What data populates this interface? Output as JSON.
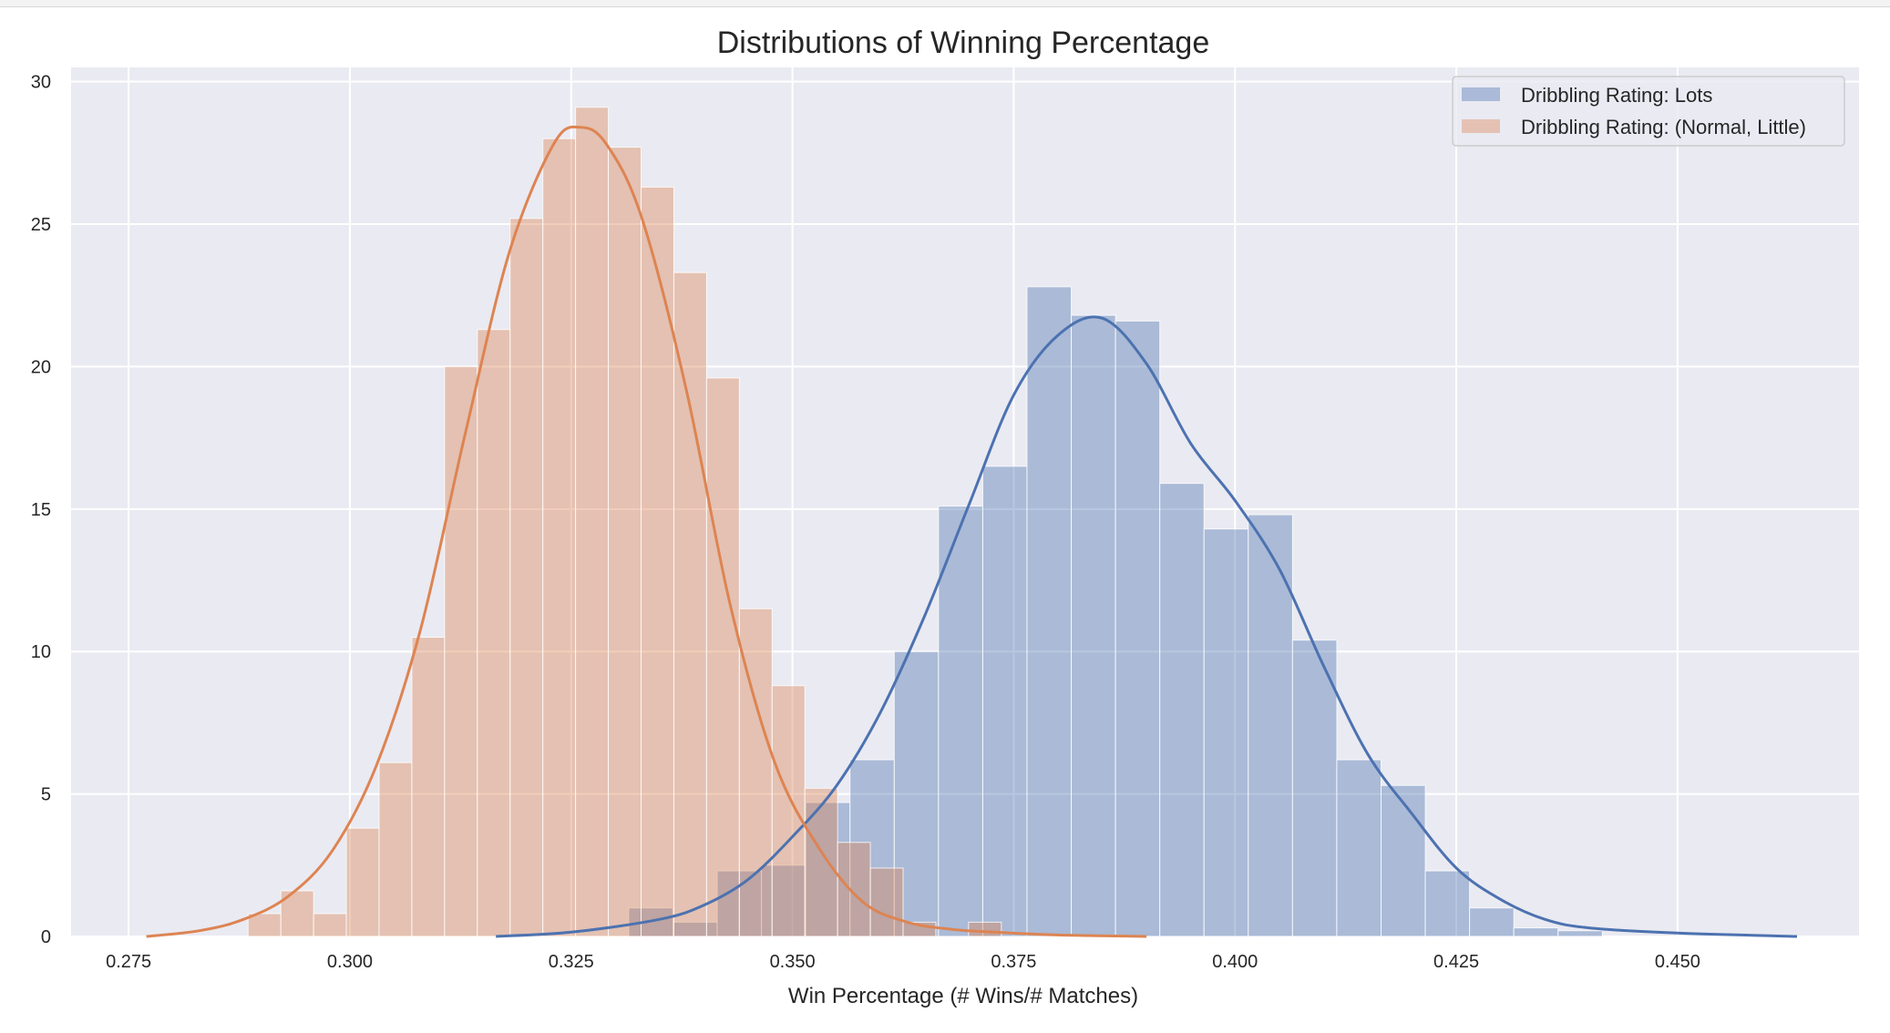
{
  "chart_data": {
    "type": "histogram",
    "title": "Distributions of Winning Percentage",
    "xlabel": "Win Percentage (# Wins/# Matches)",
    "ylabel": "",
    "xlim": [
      0.2685,
      0.4705
    ],
    "ylim": [
      0,
      30.5
    ],
    "xticks": [
      0.275,
      0.3,
      0.325,
      0.35,
      0.375,
      0.4,
      0.425,
      0.45
    ],
    "xtick_labels": [
      "0.275",
      "0.300",
      "0.325",
      "0.350",
      "0.375",
      "0.400",
      "0.425",
      "0.450"
    ],
    "yticks": [
      0,
      5,
      10,
      15,
      20,
      25,
      30
    ],
    "ytick_labels": [
      "0",
      "5",
      "10",
      "15",
      "20",
      "25",
      "30"
    ],
    "grid": true,
    "legend_position": "upper-right",
    "series": [
      {
        "name": "Dribbling Rating: Lots",
        "color": "#4c72b0",
        "bar_opacity": 0.4,
        "bins": [
          {
            "x0": 0.3315,
            "x1": 0.3365,
            "value": 1.0
          },
          {
            "x0": 0.3365,
            "x1": 0.3415,
            "value": 0.5
          },
          {
            "x0": 0.3415,
            "x1": 0.3465,
            "value": 2.3
          },
          {
            "x0": 0.3465,
            "x1": 0.3515,
            "value": 2.5
          },
          {
            "x0": 0.3515,
            "x1": 0.3565,
            "value": 4.7
          },
          {
            "x0": 0.3565,
            "x1": 0.3615,
            "value": 6.2
          },
          {
            "x0": 0.3615,
            "x1": 0.3665,
            "value": 10.0
          },
          {
            "x0": 0.3665,
            "x1": 0.3715,
            "value": 15.1
          },
          {
            "x0": 0.3715,
            "x1": 0.3765,
            "value": 16.5
          },
          {
            "x0": 0.3765,
            "x1": 0.3815,
            "value": 22.8
          },
          {
            "x0": 0.3815,
            "x1": 0.3865,
            "value": 21.8
          },
          {
            "x0": 0.3865,
            "x1": 0.3915,
            "value": 21.6
          },
          {
            "x0": 0.3915,
            "x1": 0.3965,
            "value": 15.9
          },
          {
            "x0": 0.3965,
            "x1": 0.4015,
            "value": 14.3
          },
          {
            "x0": 0.4015,
            "x1": 0.4065,
            "value": 14.8
          },
          {
            "x0": 0.4065,
            "x1": 0.4115,
            "value": 10.4
          },
          {
            "x0": 0.4115,
            "x1": 0.4165,
            "value": 6.2
          },
          {
            "x0": 0.4165,
            "x1": 0.4215,
            "value": 5.3
          },
          {
            "x0": 0.4215,
            "x1": 0.4265,
            "value": 2.3
          },
          {
            "x0": 0.4265,
            "x1": 0.4315,
            "value": 1.0
          },
          {
            "x0": 0.4315,
            "x1": 0.4365,
            "value": 0.3
          },
          {
            "x0": 0.4365,
            "x1": 0.4415,
            "value": 0.2
          }
        ],
        "kde": {
          "x": [
            0.3165,
            0.325,
            0.335,
            0.34,
            0.345,
            0.35,
            0.355,
            0.36,
            0.365,
            0.37,
            0.375,
            0.38,
            0.385,
            0.39,
            0.395,
            0.4,
            0.405,
            0.41,
            0.415,
            0.42,
            0.425,
            0.43,
            0.435,
            0.44,
            0.45,
            0.4635
          ],
          "y": [
            0.0,
            0.15,
            0.6,
            1.1,
            2.0,
            3.5,
            5.3,
            7.9,
            11.3,
            15.2,
            19.0,
            21.1,
            21.7,
            20.1,
            17.3,
            15.3,
            12.9,
            9.5,
            6.4,
            4.3,
            2.4,
            1.3,
            0.6,
            0.3,
            0.12,
            0.0
          ]
        }
      },
      {
        "name": "Dribbling Rating: (Normal, Little)",
        "color": "#dd8452",
        "bar_opacity": 0.4,
        "bins": [
          {
            "x0": 0.2885,
            "x1": 0.2922,
            "value": 0.8
          },
          {
            "x0": 0.2922,
            "x1": 0.2959,
            "value": 1.6
          },
          {
            "x0": 0.2959,
            "x1": 0.2996,
            "value": 0.8
          },
          {
            "x0": 0.2996,
            "x1": 0.3033,
            "value": 3.8
          },
          {
            "x0": 0.3033,
            "x1": 0.307,
            "value": 6.1
          },
          {
            "x0": 0.307,
            "x1": 0.3107,
            "value": 10.5
          },
          {
            "x0": 0.3107,
            "x1": 0.3144,
            "value": 20.0
          },
          {
            "x0": 0.3144,
            "x1": 0.3181,
            "value": 21.3
          },
          {
            "x0": 0.3181,
            "x1": 0.3218,
            "value": 25.2
          },
          {
            "x0": 0.3218,
            "x1": 0.3255,
            "value": 28.0
          },
          {
            "x0": 0.3255,
            "x1": 0.3292,
            "value": 29.1
          },
          {
            "x0": 0.3292,
            "x1": 0.3329,
            "value": 27.7
          },
          {
            "x0": 0.3329,
            "x1": 0.3366,
            "value": 26.3
          },
          {
            "x0": 0.3366,
            "x1": 0.3403,
            "value": 23.3
          },
          {
            "x0": 0.3403,
            "x1": 0.344,
            "value": 19.6
          },
          {
            "x0": 0.344,
            "x1": 0.3477,
            "value": 11.5
          },
          {
            "x0": 0.3477,
            "x1": 0.3514,
            "value": 8.8
          },
          {
            "x0": 0.3514,
            "x1": 0.3551,
            "value": 5.2
          },
          {
            "x0": 0.3551,
            "x1": 0.3588,
            "value": 3.3
          },
          {
            "x0": 0.3588,
            "x1": 0.3625,
            "value": 2.4
          },
          {
            "x0": 0.3625,
            "x1": 0.3662,
            "value": 0.5
          },
          {
            "x0": 0.3699,
            "x1": 0.3736,
            "value": 0.5
          }
        ],
        "kde": {
          "x": [
            0.277,
            0.283,
            0.288,
            0.293,
            0.298,
            0.303,
            0.308,
            0.313,
            0.318,
            0.323,
            0.326,
            0.329,
            0.333,
            0.338,
            0.343,
            0.348,
            0.353,
            0.358,
            0.363,
            0.368,
            0.373,
            0.38,
            0.39
          ],
          "y": [
            0.0,
            0.2,
            0.6,
            1.4,
            3.0,
            6.0,
            10.8,
            17.6,
            24.0,
            27.8,
            28.4,
            27.8,
            25.2,
            19.2,
            11.6,
            6.1,
            3.1,
            1.2,
            0.5,
            0.25,
            0.15,
            0.05,
            0.0
          ]
        }
      }
    ]
  }
}
